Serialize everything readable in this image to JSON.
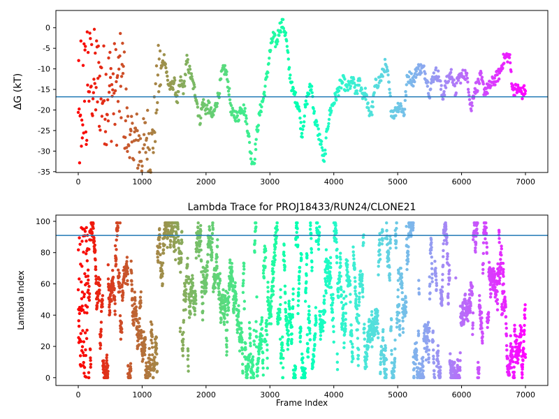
{
  "chart_data": [
    {
      "type": "scatter",
      "title": "",
      "xlabel": "",
      "ylabel": "ΔG (kT)",
      "xlim": [
        -350,
        7350
      ],
      "ylim": [
        -35.2,
        4.2
      ],
      "xticks": [
        0,
        1000,
        2000,
        3000,
        4000,
        5000,
        6000,
        7000
      ],
      "yticks": [
        0,
        -5,
        -10,
        -15,
        -20,
        -25,
        -30,
        -35
      ],
      "hline": -16.8,
      "colormap": "rainbow, reversed (early frames red, late frames violet)",
      "frame_count": 7000,
      "trace_anchors": {
        "x": [
          150,
          300,
          400,
          500,
          600,
          700,
          760,
          820,
          900,
          1000,
          1080,
          1150,
          1200,
          1250,
          1300,
          1350,
          1400,
          1450,
          1500,
          1550,
          1600,
          1650,
          1700,
          1750,
          1800,
          1850,
          1900,
          1950,
          2000,
          2050,
          2100,
          2150,
          2200,
          2250,
          2300,
          2350,
          2400,
          2450,
          2500,
          2550,
          2600,
          2650,
          2700,
          2750,
          2800,
          2850,
          2900,
          2950,
          3000,
          3050,
          3100,
          3150,
          3200,
          3250,
          3300,
          3350,
          3400,
          3450,
          3500,
          3550,
          3600,
          3650,
          3700,
          3750,
          3800,
          3850,
          3900,
          3950,
          4000,
          4050,
          4100,
          4150,
          4200,
          4250,
          4300,
          4350,
          4400,
          4450,
          4500,
          4550,
          4600,
          4650,
          4700,
          4750,
          4800,
          4850,
          4900,
          4950,
          5000,
          5050,
          5100,
          5150,
          5200,
          5250,
          5300,
          5350,
          5400,
          5450,
          5500,
          5550,
          5600,
          5650,
          5700,
          5750,
          5800,
          5850,
          5900,
          5950,
          6000,
          6050,
          6100,
          6150,
          6200,
          6250,
          6300,
          6350,
          6400,
          6450,
          6500,
          6550,
          6600,
          6650,
          6700,
          6750,
          6800,
          6850,
          6900,
          6950,
          7000
        ],
        "y": [
          -12,
          -13,
          -16,
          -15,
          -16,
          -13,
          -25,
          -30,
          -27,
          -31,
          -26,
          -30,
          -22,
          -12,
          -10,
          -7,
          -13,
          -15,
          -13,
          -18,
          -13,
          -15,
          -8,
          -11,
          -14,
          -17,
          -23,
          -18,
          -20,
          -19,
          -22,
          -19,
          -16,
          -11,
          -10,
          -14,
          -21,
          -21,
          -22,
          -19,
          -20,
          -24,
          -31,
          -33,
          -25,
          -20,
          -17,
          -12,
          -6,
          -2,
          -4,
          0,
          1,
          -2,
          -10,
          -15,
          -17,
          -19,
          -26,
          -20,
          -16,
          -14,
          -22,
          -25,
          -28,
          -33,
          -24,
          -20,
          -18,
          -16,
          -14,
          -13,
          -15,
          -14,
          -13,
          -16,
          -13,
          -16,
          -16,
          -21,
          -20,
          -14,
          -13,
          -12,
          -9,
          -12,
          -20,
          -21,
          -19,
          -19,
          -21,
          -12,
          -12,
          -13,
          -10,
          -10,
          -10,
          -12,
          -16,
          -12,
          -11,
          -12,
          -17,
          -14,
          -12,
          -11,
          -16,
          -12,
          -12,
          -11,
          -13,
          -20,
          -15,
          -14,
          -12,
          -15,
          -15,
          -14,
          -13,
          -12,
          -11,
          -8,
          -7,
          -7,
          -15,
          -15,
          -15,
          -16,
          -15
        ],
        "note": "approximate dG values at selected frames; full trace dense and noisy"
      }
    },
    {
      "type": "scatter",
      "title": "Lambda Trace for PROJ18433/RUN24/CLONE21",
      "xlabel": "Frame Index",
      "ylabel": "Lambda Index",
      "xlim": [
        -350,
        7350
      ],
      "ylim": [
        -5,
        104
      ],
      "xticks": [
        0,
        1000,
        2000,
        3000,
        4000,
        5000,
        6000,
        7000
      ],
      "yticks": [
        0,
        20,
        40,
        60,
        80,
        100
      ],
      "hline": 91,
      "colormap": "rainbow, reversed (early frames red, late frames violet)",
      "frame_count": 7000,
      "value_range": [
        0,
        99
      ],
      "description": "lambda index values randomly walk between 0 and 99 in bursts across frames"
    }
  ]
}
